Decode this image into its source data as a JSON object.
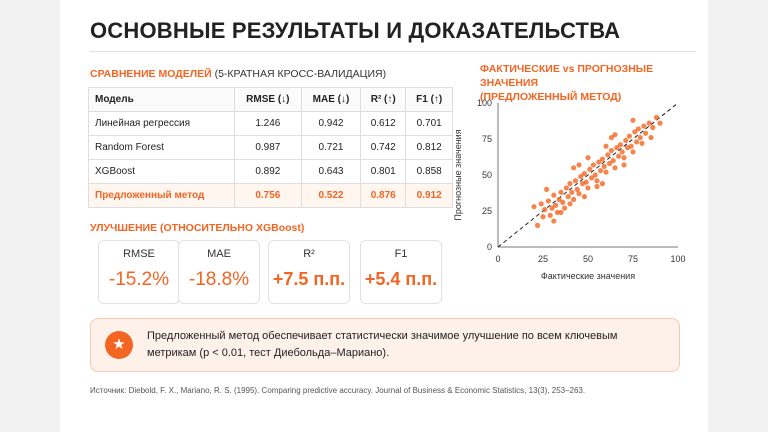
{
  "title": "ОСНОВНЫЕ РЕЗУЛЬТАТЫ И ДОКАЗАТЕЛЬСТВА",
  "table_section": {
    "head": "СРАВНЕНИЕ МОДЕЛЕЙ",
    "sub": "(5-КРАТНАЯ КРОСС-ВАЛИДАЦИЯ)"
  },
  "table": {
    "headers": [
      "Модель",
      "RMSE (↓)",
      "MAE (↓)",
      "R² (↑)",
      "F1 (↑)"
    ],
    "rows": [
      [
        "Линейная регрессия",
        "1.246",
        "0.942",
        "0.612",
        "0.701"
      ],
      [
        "Random Forest",
        "0.987",
        "0.721",
        "0.742",
        "0.812"
      ],
      [
        "XGBoost",
        "0.892",
        "0.643",
        "0.801",
        "0.858"
      ],
      [
        "Предложенный метод",
        "0.756",
        "0.522",
        "0.876",
        "0.912"
      ]
    ]
  },
  "improvement_section": {
    "head": "УЛУЧШЕНИЕ (ОТНОСИТЕЛЬНО XGBoost)"
  },
  "cards": [
    {
      "label": "RMSE",
      "value": "-15.2%"
    },
    {
      "label": "MAE",
      "value": "-18.8%"
    },
    {
      "label": "R²",
      "value": "+7.5 п.п."
    },
    {
      "label": "F1",
      "value": "+5.4 п.п."
    }
  ],
  "chart_section": {
    "line1": "ФАКТИЧЕСКИЕ vs ПРОГНОЗНЫЕ ЗНАЧЕНИЯ",
    "line2": "(ПРЕДЛОЖЕННЫЙ МЕТОД)"
  },
  "chart_data": {
    "type": "scatter",
    "title": "ФАКТИЧЕСКИЕ vs ПРОГНОЗНЫЕ ЗНАЧЕНИЯ (ПРЕДЛОЖЕННЫЙ МЕТОД)",
    "xlabel": "Фактические значения",
    "ylabel": "Прогнозные значения",
    "xlim": [
      0,
      100
    ],
    "ylim": [
      0,
      100
    ],
    "xticks": [
      "0",
      "25",
      "50",
      "75",
      "100"
    ],
    "yticks": [
      "0",
      "25",
      "50",
      "75",
      "100"
    ],
    "grid": false,
    "reference_line": "y = x (dashed)",
    "color": "#f26522",
    "points": [
      [
        20,
        28
      ],
      [
        22,
        15
      ],
      [
        24,
        30
      ],
      [
        25,
        21
      ],
      [
        26,
        26
      ],
      [
        28,
        32
      ],
      [
        29,
        22
      ],
      [
        30,
        27
      ],
      [
        31,
        36
      ],
      [
        32,
        29
      ],
      [
        33,
        24
      ],
      [
        34,
        33
      ],
      [
        35,
        38
      ],
      [
        36,
        31
      ],
      [
        37,
        27
      ],
      [
        38,
        41
      ],
      [
        39,
        35
      ],
      [
        40,
        44
      ],
      [
        41,
        38
      ],
      [
        42,
        33
      ],
      [
        43,
        46
      ],
      [
        44,
        40
      ],
      [
        45,
        37
      ],
      [
        46,
        49
      ],
      [
        47,
        44
      ],
      [
        48,
        51
      ],
      [
        49,
        45
      ],
      [
        50,
        41
      ],
      [
        51,
        54
      ],
      [
        52,
        48
      ],
      [
        53,
        57
      ],
      [
        54,
        50
      ],
      [
        55,
        46
      ],
      [
        56,
        59
      ],
      [
        57,
        53
      ],
      [
        58,
        61
      ],
      [
        59,
        56
      ],
      [
        60,
        52
      ],
      [
        61,
        64
      ],
      [
        62,
        58
      ],
      [
        63,
        67
      ],
      [
        64,
        60
      ],
      [
        65,
        55
      ],
      [
        66,
        69
      ],
      [
        67,
        63
      ],
      [
        68,
        71
      ],
      [
        69,
        66
      ],
      [
        70,
        62
      ],
      [
        71,
        74
      ],
      [
        72,
        69
      ],
      [
        73,
        77
      ],
      [
        74,
        70
      ],
      [
        75,
        66
      ],
      [
        76,
        80
      ],
      [
        77,
        73
      ],
      [
        78,
        82
      ],
      [
        79,
        76
      ],
      [
        80,
        72
      ],
      [
        81,
        84
      ],
      [
        82,
        79
      ],
      [
        84,
        86
      ],
      [
        86,
        83
      ],
      [
        88,
        90
      ],
      [
        90,
        86
      ],
      [
        35,
        24
      ],
      [
        40,
        30
      ],
      [
        45,
        57
      ],
      [
        50,
        62
      ],
      [
        55,
        42
      ],
      [
        60,
        70
      ],
      [
        65,
        78
      ],
      [
        70,
        57
      ],
      [
        27,
        40
      ],
      [
        42,
        55
      ],
      [
        58,
        44
      ],
      [
        63,
        76
      ],
      [
        75,
        88
      ],
      [
        85,
        76
      ],
      [
        31,
        18
      ],
      [
        48,
        35
      ]
    ]
  },
  "callout": {
    "badge_icon": "star-icon",
    "text": "Предложенный метод обеспечивает статистически значимое улучшение по всем ключевым метрикам (p < 0.01, тест Диебольда–Мариано)."
  },
  "source": "Источник: Diebold, F. X., Mariano, R. S. (1995). Comparing predictive accuracy. Journal of Business & Economic Statistics, 13(3), 253–263.",
  "colors": {
    "accent": "#f26522",
    "callout_bg": "#fdf1ea"
  }
}
